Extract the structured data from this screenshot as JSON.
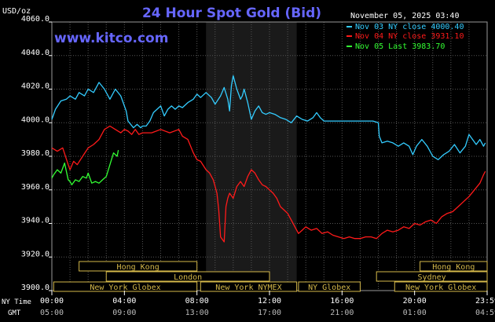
{
  "chart_data": {
    "type": "line",
    "title": "24 Hour Spot Gold (Bid)",
    "unit_label": "USD/oz",
    "brand": "www.kitco.com",
    "date_time": "November 05, 2025 03:40",
    "ylim": [
      3900,
      4060
    ],
    "y_ticks": [
      "4060.0",
      "4040.0",
      "4020.0",
      "4000.0",
      "3980.0",
      "3960.0",
      "3940.0",
      "3920.0",
      "3900.0"
    ],
    "x_ticks_ny": [
      "00:00",
      "04:00",
      "08:00",
      "12:00",
      "16:00",
      "20:00",
      "23:59"
    ],
    "x_ticks_gmt": [
      "05:00",
      "09:00",
      "13:00",
      "17:00",
      "21:00",
      "01:00",
      "04:59"
    ],
    "x_axis_labels": {
      "ny": "NY Time",
      "gmt": "GMT"
    },
    "shaded_region_hours": [
      8.5,
      13.5
    ],
    "grid": true,
    "legend_position": "top-right",
    "series": [
      {
        "name": "Nov 03 NY close 4000.40",
        "color": "#33ccff",
        "x": [
          0,
          0.2,
          0.5,
          0.8,
          1.0,
          1.3,
          1.5,
          1.8,
          2.0,
          2.3,
          2.6,
          2.9,
          3.2,
          3.3,
          3.5,
          3.8,
          4.0,
          4.1,
          4.2,
          4.5,
          4.7,
          4.9,
          5.0,
          5.2,
          5.4,
          5.6,
          5.8,
          6.0,
          6.2,
          6.4,
          6.6,
          6.8,
          7.0,
          7.2,
          7.5,
          7.8,
          8.0,
          8.2,
          8.5,
          8.8,
          9.0,
          9.3,
          9.5,
          9.7,
          9.8,
          9.9,
          10.0,
          10.2,
          10.4,
          10.5,
          10.6,
          10.8,
          11.0,
          11.2,
          11.4,
          11.6,
          11.8,
          12.0,
          12.3,
          12.6,
          12.9,
          13.2,
          13.5,
          13.8,
          14.1,
          14.4,
          14.6,
          14.8,
          15.0,
          15.3,
          15.6,
          15.9,
          16.2,
          16.5,
          16.8,
          17.1,
          17.4,
          17.7,
          18.0,
          18.05,
          18.2,
          18.5,
          18.8,
          19.1,
          19.4,
          19.7,
          19.9,
          20.1,
          20.4,
          20.7,
          21.0,
          21.3,
          21.6,
          21.9,
          22.2,
          22.5,
          22.8,
          23.0,
          23.2,
          23.4,
          23.6,
          23.8,
          23.9
        ],
        "y": [
          4002,
          4008,
          4013,
          4014,
          4016,
          4014,
          4018,
          4016,
          4020,
          4018,
          4024,
          4020,
          4014,
          4016,
          4020,
          4016,
          4010,
          4007,
          4001,
          3997,
          3999,
          3997,
          3998,
          3998,
          4001,
          4006,
          4008,
          4010,
          4004,
          4008,
          4010,
          4008,
          4010,
          4009,
          4012,
          4014,
          4017,
          4015,
          4018,
          4015,
          4011,
          4016,
          4021,
          4014,
          4007,
          4022,
          4028,
          4020,
          4014,
          4016,
          4020,
          4012,
          4002,
          4007,
          4010,
          4006,
          4005,
          4006,
          4005,
          4003,
          4002,
          4000,
          4004,
          4002,
          4001,
          4003,
          4006,
          4003,
          4001,
          4001,
          4001,
          4001,
          4001,
          4001,
          4001,
          4001,
          4001,
          4001,
          4000,
          3992,
          3988,
          3989,
          3988,
          3986,
          3988,
          3986,
          3981,
          3986,
          3990,
          3986,
          3980,
          3978,
          3981,
          3983,
          3987,
          3982,
          3986,
          3993,
          3990,
          3987,
          3990,
          3986,
          3988
        ]
      },
      {
        "name": "Nov 04 NY close 3931.10",
        "color": "#ff1a1a",
        "x": [
          0,
          0.3,
          0.6,
          0.9,
          1.0,
          1.2,
          1.4,
          1.7,
          2.0,
          2.3,
          2.6,
          2.9,
          3.2,
          3.5,
          3.8,
          4.0,
          4.2,
          4.4,
          4.6,
          4.8,
          5.0,
          5.5,
          6.0,
          6.5,
          7.0,
          7.2,
          7.5,
          7.8,
          8.0,
          8.2,
          8.5,
          8.7,
          8.9,
          9.0,
          9.1,
          9.2,
          9.3,
          9.5,
          9.6,
          9.7,
          9.8,
          10.0,
          10.2,
          10.4,
          10.6,
          10.8,
          11.0,
          11.2,
          11.4,
          11.6,
          11.8,
          12.0,
          12.2,
          12.4,
          12.6,
          12.8,
          13.0,
          13.2,
          13.4,
          13.6,
          13.8,
          14.0,
          14.3,
          14.6,
          14.9,
          15.2,
          15.5,
          15.8,
          16.1,
          16.4,
          16.7,
          17.0,
          17.3,
          17.6,
          17.9,
          18.2,
          18.5,
          18.8,
          19.1,
          19.4,
          19.7,
          20.0,
          20.3,
          20.6,
          20.9,
          21.2,
          21.5,
          21.8,
          22.1,
          22.4,
          22.7,
          23.0,
          23.3,
          23.6,
          23.8,
          23.9
        ],
        "y": [
          3985,
          3983,
          3985,
          3975,
          3972,
          3977,
          3975,
          3980,
          3985,
          3987,
          3990,
          3996,
          3998,
          3996,
          3994,
          3996,
          3995,
          3993,
          3996,
          3993,
          3994,
          3994,
          3996,
          3994,
          3996,
          3992,
          3990,
          3982,
          3978,
          3977,
          3972,
          3970,
          3966,
          3962,
          3958,
          3948,
          3932,
          3929,
          3950,
          3955,
          3958,
          3955,
          3962,
          3965,
          3962,
          3968,
          3972,
          3970,
          3966,
          3963,
          3962,
          3960,
          3958,
          3955,
          3950,
          3948,
          3946,
          3942,
          3938,
          3934,
          3936,
          3938,
          3936,
          3937,
          3934,
          3935,
          3933,
          3932,
          3931,
          3932,
          3931,
          3931,
          3932,
          3932,
          3931,
          3934,
          3936,
          3935,
          3936,
          3938,
          3937,
          3940,
          3939,
          3941,
          3942,
          3940,
          3944,
          3946,
          3947,
          3950,
          3953,
          3956,
          3960,
          3964,
          3969,
          3971
        ]
      },
      {
        "name": "Nov 05 Last 3983.70",
        "color": "#33ff33",
        "x": [
          0,
          0.1,
          0.3,
          0.5,
          0.7,
          0.9,
          1.0,
          1.1,
          1.3,
          1.5,
          1.7,
          1.9,
          2.0,
          2.2,
          2.4,
          2.6,
          2.8,
          3.0,
          3.2,
          3.4,
          3.6,
          3.667
        ],
        "y": [
          3967,
          3969,
          3972,
          3970,
          3976,
          3966,
          3965,
          3963,
          3966,
          3965,
          3968,
          3967,
          3970,
          3964,
          3965,
          3964,
          3966,
          3968,
          3975,
          3982,
          3980,
          3983.7
        ]
      }
    ],
    "sessions": [
      {
        "label": "Hong Kong",
        "row": 1,
        "start": 1.5,
        "end": 8.0
      },
      {
        "label": "Hong Kong",
        "row": 1,
        "start": 20.3,
        "end": 24.0
      },
      {
        "label": "London",
        "row": 2,
        "start": 3.0,
        "end": 12.0
      },
      {
        "label": "Sydney",
        "row": 2,
        "start": 17.9,
        "end": 24.0
      },
      {
        "label": "New York Globex",
        "row": 3,
        "start": 0.1,
        "end": 8.0
      },
      {
        "label": "New York NYMEX",
        "row": 3,
        "start": 8.2,
        "end": 13.5
      },
      {
        "label": "NY Globex",
        "row": 3,
        "start": 13.6,
        "end": 17.0
      },
      {
        "label": "New York Globex",
        "row": 3,
        "start": 18.9,
        "end": 24.0
      }
    ]
  }
}
